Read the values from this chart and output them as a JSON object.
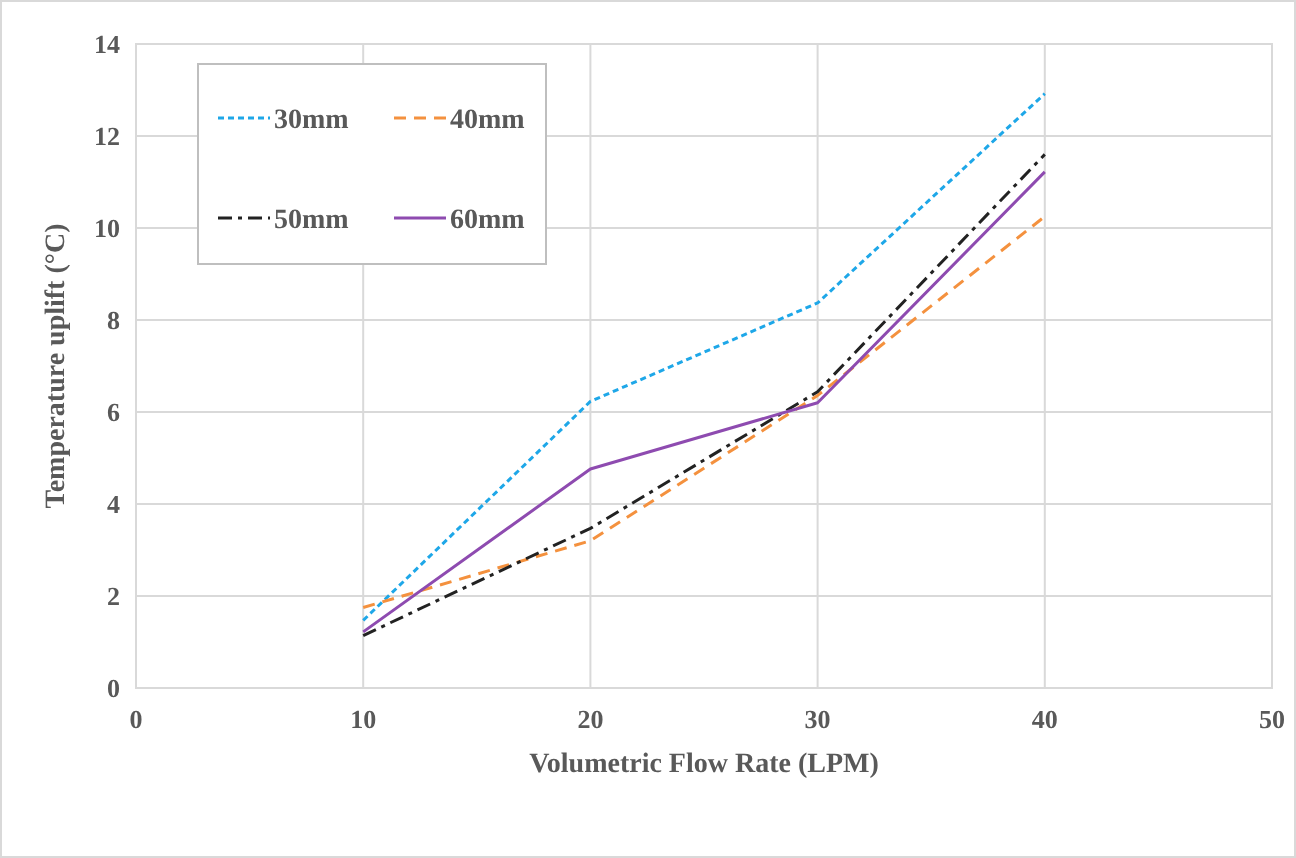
{
  "chart_data": {
    "type": "line",
    "xlabel": "Volumetric Flow Rate (LPM)",
    "ylabel": "Temperature uplift (°C)",
    "x": [
      10,
      20,
      30,
      40
    ],
    "series": [
      {
        "name": "30mm",
        "color": "#1ea7e8",
        "line_style": "dotted",
        "values": [
          1.47,
          6.23,
          8.37,
          12.92
        ]
      },
      {
        "name": "40mm",
        "color": "#f4913e",
        "line_style": "dashed",
        "values": [
          1.75,
          3.2,
          6.36,
          10.25
        ]
      },
      {
        "name": "50mm",
        "color": "#222222",
        "line_style": "dashdot",
        "values": [
          1.14,
          3.47,
          6.44,
          11.6
        ]
      },
      {
        "name": "60mm",
        "color": "#8e4bb0",
        "line_style": "solid",
        "values": [
          1.22,
          4.76,
          6.2,
          11.22
        ]
      }
    ],
    "xlim": [
      0,
      50
    ],
    "xticks": [
      0,
      10,
      20,
      30,
      40,
      50
    ],
    "ylim": [
      0,
      14
    ],
    "yticks": [
      0,
      2,
      4,
      6,
      8,
      10,
      12,
      14
    ],
    "grid": true,
    "legend": "top left",
    "marker": "none"
  }
}
